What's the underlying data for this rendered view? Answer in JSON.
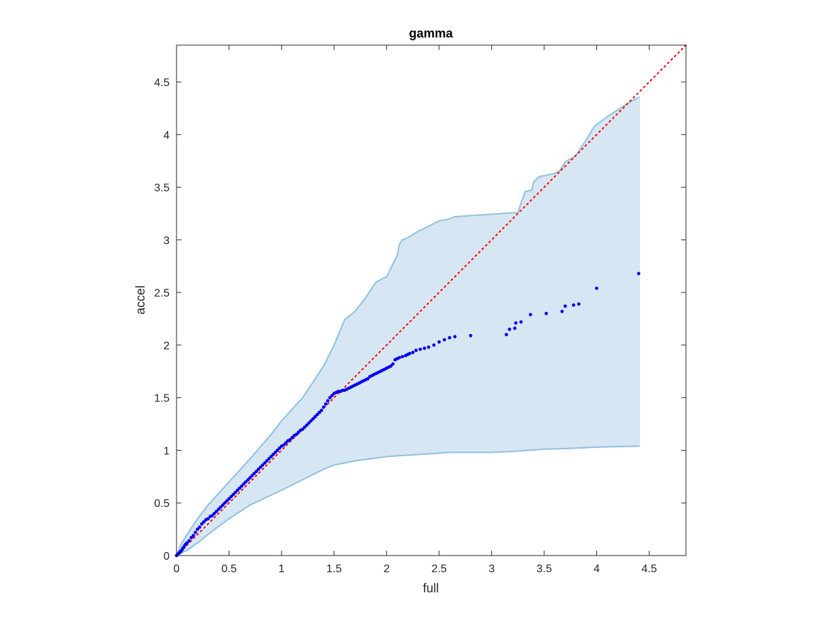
{
  "chart_data": {
    "type": "scatter",
    "title": "gamma",
    "xlabel": "full",
    "ylabel": "accel",
    "xlim": [
      0,
      4.85
    ],
    "ylim": [
      0,
      4.85
    ],
    "xticks": [
      0,
      0.5,
      1,
      1.5,
      2,
      2.5,
      3,
      3.5,
      4,
      4.5
    ],
    "yticks": [
      0,
      0.5,
      1,
      1.5,
      2,
      2.5,
      3,
      3.5,
      4,
      4.5
    ],
    "xtick_labels": [
      "0",
      "0.5",
      "1",
      "1.5",
      "2",
      "2.5",
      "3",
      "3.5",
      "4",
      "4.5"
    ],
    "ytick_labels": [
      "0",
      "0.5",
      "1",
      "1.5",
      "2",
      "2.5",
      "3",
      "3.5",
      "4",
      "4.5"
    ],
    "grid": false,
    "colors": {
      "band_fill": "#d6e6f3",
      "band_edge": "#8fc0e0",
      "points": "#0000ee",
      "reference": "#ff0000",
      "axes": "#262626"
    },
    "reference_line": {
      "style": "dotted",
      "x": [
        0,
        4.85
      ],
      "y": [
        0,
        4.85
      ]
    },
    "band": {
      "upper": [
        [
          0,
          0
        ],
        [
          0.05,
          0.12
        ],
        [
          0.1,
          0.2
        ],
        [
          0.2,
          0.35
        ],
        [
          0.3,
          0.48
        ],
        [
          0.5,
          0.7
        ],
        [
          0.7,
          0.92
        ],
        [
          0.9,
          1.15
        ],
        [
          1.0,
          1.28
        ],
        [
          1.2,
          1.5
        ],
        [
          1.4,
          1.8
        ],
        [
          1.5,
          2.0
        ],
        [
          1.6,
          2.24
        ],
        [
          1.7,
          2.32
        ],
        [
          1.8,
          2.45
        ],
        [
          1.9,
          2.6
        ],
        [
          2.0,
          2.65
        ],
        [
          2.05,
          2.75
        ],
        [
          2.1,
          2.85
        ],
        [
          2.12,
          2.95
        ],
        [
          2.15,
          3.0
        ],
        [
          2.2,
          3.02
        ],
        [
          2.3,
          3.08
        ],
        [
          2.5,
          3.18
        ],
        [
          2.6,
          3.2
        ],
        [
          2.65,
          3.22
        ],
        [
          2.8,
          3.23
        ],
        [
          3.1,
          3.25
        ],
        [
          3.25,
          3.26
        ],
        [
          3.28,
          3.35
        ],
        [
          3.32,
          3.46
        ],
        [
          3.38,
          3.47
        ],
        [
          3.4,
          3.55
        ],
        [
          3.45,
          3.6
        ],
        [
          3.6,
          3.63
        ],
        [
          3.65,
          3.66
        ],
        [
          3.7,
          3.74
        ],
        [
          3.8,
          3.8
        ],
        [
          3.9,
          3.95
        ],
        [
          3.98,
          4.08
        ],
        [
          4.1,
          4.17
        ],
        [
          4.3,
          4.3
        ],
        [
          4.41,
          4.36
        ]
      ],
      "lower": [
        [
          0,
          0
        ],
        [
          0.1,
          0.05
        ],
        [
          0.2,
          0.12
        ],
        [
          0.3,
          0.2
        ],
        [
          0.5,
          0.35
        ],
        [
          0.7,
          0.48
        ],
        [
          1.0,
          0.62
        ],
        [
          1.2,
          0.72
        ],
        [
          1.4,
          0.82
        ],
        [
          1.5,
          0.86
        ],
        [
          1.7,
          0.9
        ],
        [
          2.0,
          0.94
        ],
        [
          2.3,
          0.96
        ],
        [
          2.6,
          0.98
        ],
        [
          3.0,
          0.98
        ],
        [
          3.2,
          0.99
        ],
        [
          3.5,
          1.01
        ],
        [
          3.8,
          1.02
        ],
        [
          4.0,
          1.03
        ],
        [
          4.41,
          1.04
        ]
      ]
    },
    "series": [
      {
        "points": [
          [
            0,
            0
          ],
          [
            0.01,
            0.01
          ],
          [
            0.02,
            0.02
          ],
          [
            0.03,
            0.03
          ],
          [
            0.04,
            0.04
          ],
          [
            0.05,
            0.05
          ],
          [
            0.06,
            0.07
          ],
          [
            0.07,
            0.08
          ],
          [
            0.08,
            0.1
          ],
          [
            0.09,
            0.11
          ],
          [
            0.1,
            0.12
          ],
          [
            0.12,
            0.14
          ],
          [
            0.14,
            0.17
          ],
          [
            0.16,
            0.19
          ],
          [
            0.18,
            0.22
          ],
          [
            0.2,
            0.25
          ],
          [
            0.22,
            0.27
          ],
          [
            0.24,
            0.3
          ],
          [
            0.26,
            0.32
          ],
          [
            0.28,
            0.34
          ],
          [
            0.3,
            0.35
          ],
          [
            0.32,
            0.37
          ],
          [
            0.34,
            0.38
          ],
          [
            0.36,
            0.4
          ],
          [
            0.38,
            0.42
          ],
          [
            0.4,
            0.44
          ],
          [
            0.42,
            0.46
          ],
          [
            0.44,
            0.48
          ],
          [
            0.46,
            0.5
          ],
          [
            0.48,
            0.52
          ],
          [
            0.5,
            0.54
          ],
          [
            0.52,
            0.56
          ],
          [
            0.54,
            0.58
          ],
          [
            0.56,
            0.6
          ],
          [
            0.58,
            0.62
          ],
          [
            0.6,
            0.64
          ],
          [
            0.62,
            0.66
          ],
          [
            0.64,
            0.68
          ],
          [
            0.66,
            0.7
          ],
          [
            0.68,
            0.72
          ],
          [
            0.7,
            0.74
          ],
          [
            0.72,
            0.76
          ],
          [
            0.74,
            0.78
          ],
          [
            0.76,
            0.8
          ],
          [
            0.78,
            0.82
          ],
          [
            0.8,
            0.84
          ],
          [
            0.82,
            0.86
          ],
          [
            0.84,
            0.88
          ],
          [
            0.86,
            0.9
          ],
          [
            0.88,
            0.92
          ],
          [
            0.9,
            0.94
          ],
          [
            0.92,
            0.96
          ],
          [
            0.94,
            0.98
          ],
          [
            0.96,
            1.0
          ],
          [
            0.98,
            1.02
          ],
          [
            1.0,
            1.04
          ],
          [
            1.02,
            1.05
          ],
          [
            1.04,
            1.07
          ],
          [
            1.06,
            1.09
          ],
          [
            1.08,
            1.1
          ],
          [
            1.1,
            1.12
          ],
          [
            1.12,
            1.14
          ],
          [
            1.14,
            1.15
          ],
          [
            1.16,
            1.17
          ],
          [
            1.18,
            1.19
          ],
          [
            1.2,
            1.2
          ],
          [
            1.22,
            1.22
          ],
          [
            1.24,
            1.24
          ],
          [
            1.26,
            1.26
          ],
          [
            1.28,
            1.28
          ],
          [
            1.3,
            1.3
          ],
          [
            1.32,
            1.32
          ],
          [
            1.34,
            1.34
          ],
          [
            1.36,
            1.36
          ],
          [
            1.38,
            1.38
          ],
          [
            1.4,
            1.41
          ],
          [
            1.42,
            1.44
          ],
          [
            1.44,
            1.47
          ],
          [
            1.46,
            1.5
          ],
          [
            1.48,
            1.52
          ],
          [
            1.5,
            1.54
          ],
          [
            1.52,
            1.55
          ],
          [
            1.54,
            1.56
          ],
          [
            1.56,
            1.56
          ],
          [
            1.58,
            1.57
          ],
          [
            1.6,
            1.57
          ],
          [
            1.62,
            1.58
          ],
          [
            1.64,
            1.59
          ],
          [
            1.66,
            1.6
          ],
          [
            1.68,
            1.61
          ],
          [
            1.7,
            1.62
          ],
          [
            1.72,
            1.63
          ],
          [
            1.74,
            1.64
          ],
          [
            1.76,
            1.65
          ],
          [
            1.78,
            1.66
          ],
          [
            1.8,
            1.67
          ],
          [
            1.82,
            1.68
          ],
          [
            1.84,
            1.7
          ],
          [
            1.86,
            1.71
          ],
          [
            1.88,
            1.72
          ],
          [
            1.9,
            1.73
          ],
          [
            1.92,
            1.74
          ],
          [
            1.94,
            1.75
          ],
          [
            1.96,
            1.76
          ],
          [
            1.98,
            1.77
          ],
          [
            2.0,
            1.78
          ],
          [
            2.02,
            1.79
          ],
          [
            2.04,
            1.8
          ],
          [
            2.06,
            1.82
          ],
          [
            2.08,
            1.86
          ],
          [
            2.1,
            1.87
          ],
          [
            2.12,
            1.88
          ],
          [
            2.15,
            1.89
          ],
          [
            2.18,
            1.9
          ],
          [
            2.2,
            1.91
          ],
          [
            2.22,
            1.92
          ],
          [
            2.25,
            1.93
          ],
          [
            2.28,
            1.95
          ],
          [
            2.32,
            1.96
          ],
          [
            2.36,
            1.97
          ],
          [
            2.4,
            1.98
          ],
          [
            2.45,
            2.0
          ],
          [
            2.5,
            2.03
          ],
          [
            2.55,
            2.05
          ],
          [
            2.6,
            2.07
          ],
          [
            2.65,
            2.08
          ],
          [
            2.8,
            2.09
          ],
          [
            3.14,
            2.1
          ],
          [
            3.17,
            2.15
          ],
          [
            3.22,
            2.16
          ],
          [
            3.23,
            2.21
          ],
          [
            3.28,
            2.22
          ],
          [
            3.37,
            2.29
          ],
          [
            3.52,
            2.3
          ],
          [
            3.67,
            2.32
          ],
          [
            3.7,
            2.37
          ],
          [
            3.78,
            2.38
          ],
          [
            3.83,
            2.39
          ],
          [
            4.0,
            2.54
          ],
          [
            4.4,
            2.68
          ]
        ]
      }
    ]
  }
}
